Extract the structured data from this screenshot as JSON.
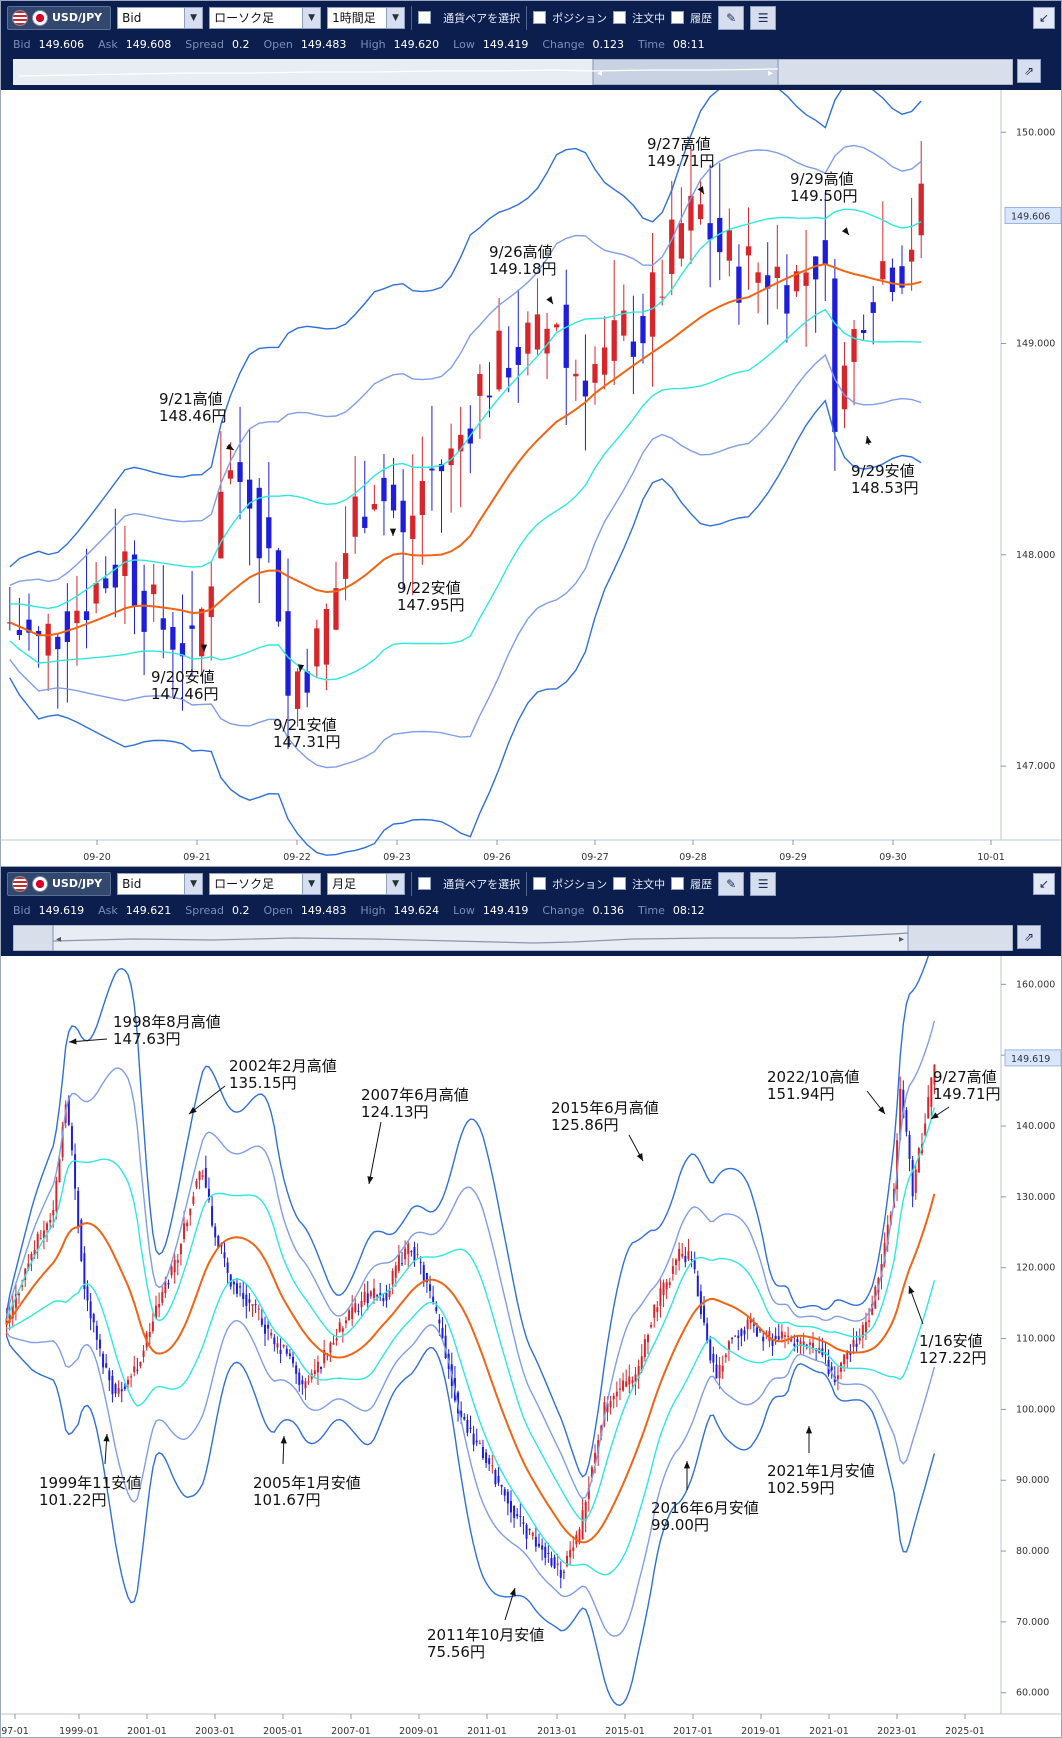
{
  "colors": {
    "toolbar_bg": "#0c1e4d",
    "bull": "#d6252b",
    "bear": "#1d1ddb",
    "sma": "#f06414",
    "band1": "#2ee8e0",
    "band2": "#7f9de8",
    "band3": "#2e6fdc",
    "price_tag_bg": "#d8e6ff"
  },
  "panels": [
    {
      "pair": "USD/JPY",
      "flags": [
        "us-flag-icon",
        "jp-flag-icon"
      ],
      "price_type": "Bid",
      "chart_kind": "ローソク足",
      "timeframe": "1時間足",
      "select_pair_label": "通貨ペアを選択",
      "checks": [
        "ポジション",
        "注文中",
        "履歴"
      ],
      "quote": {
        "bid_label": "Bid",
        "bid": "149.606",
        "ask_label": "Ask",
        "ask": "149.608",
        "spread_label": "Spread",
        "spread": "0.2",
        "open_label": "Open",
        "open": "149.483",
        "high_label": "High",
        "high": "149.620",
        "low_label": "Low",
        "low": "149.419",
        "change_label": "Change",
        "change": "0.123",
        "time_label": "Time",
        "time": "08:11"
      },
      "chart_data": {
        "type": "candlestick",
        "ylim": [
          146.65,
          150.2
        ],
        "y_ticks": [
          "150.000",
          "149.000",
          "148.000",
          "147.000"
        ],
        "x_ticks": [
          "09-20",
          "09-21",
          "09-22",
          "09-23",
          "09-26",
          "09-27",
          "09-28",
          "09-29",
          "09-30",
          "10-01"
        ],
        "current_price": "149.606",
        "close_path": [
          [
            0,
            147.68
          ],
          [
            3,
            147.56
          ],
          [
            6,
            147.72
          ],
          [
            9,
            147.85
          ],
          [
            12,
            147.98
          ],
          [
            15,
            147.7
          ],
          [
            18,
            147.6
          ],
          [
            19,
            147.5
          ],
          [
            21,
            147.95
          ],
          [
            22,
            148.38
          ],
          [
            25,
            148.35
          ],
          [
            26,
            148.15
          ],
          [
            28,
            147.8
          ],
          [
            29,
            147.32
          ],
          [
            30,
            147.45
          ],
          [
            32,
            147.55
          ],
          [
            34,
            147.85
          ],
          [
            36,
            148.2
          ],
          [
            38,
            148.35
          ],
          [
            40,
            148.2
          ],
          [
            41,
            148.05
          ],
          [
            43,
            148.35
          ],
          [
            46,
            148.45
          ],
          [
            49,
            148.8
          ],
          [
            52,
            148.95
          ],
          [
            55,
            149.0
          ],
          [
            57,
            149.15
          ],
          [
            58,
            148.9
          ],
          [
            60,
            148.88
          ],
          [
            62,
            148.9
          ],
          [
            64,
            149.05
          ],
          [
            66,
            149.08
          ],
          [
            68,
            149.3
          ],
          [
            70,
            149.55
          ],
          [
            72,
            149.62
          ],
          [
            74,
            149.45
          ],
          [
            76,
            149.35
          ],
          [
            79,
            149.35
          ],
          [
            82,
            149.3
          ],
          [
            84,
            149.42
          ],
          [
            85,
            149.25
          ],
          [
            86,
            148.75
          ],
          [
            87,
            148.85
          ],
          [
            89,
            149.22
          ],
          [
            91,
            149.38
          ],
          [
            93,
            149.4
          ],
          [
            95,
            149.62
          ]
        ],
        "annotations": [
          {
            "label": "9/20安値",
            "price": "147.46円"
          },
          {
            "label": "9/21高値",
            "price": "148.46円"
          },
          {
            "label": "9/21安値",
            "price": "147.31円"
          },
          {
            "label": "9/22安値",
            "price": "147.95円"
          },
          {
            "label": "9/26高値",
            "price": "149.18円"
          },
          {
            "label": "9/27高値",
            "price": "149.71円"
          },
          {
            "label": "9/29高値",
            "price": "149.50円"
          },
          {
            "label": "9/29安値",
            "price": "148.53円"
          }
        ]
      }
    },
    {
      "pair": "USD/JPY",
      "flags": [
        "us-flag-icon",
        "jp-flag-icon"
      ],
      "price_type": "Bid",
      "chart_kind": "ローソク足",
      "timeframe": "月足",
      "select_pair_label": "通貨ペアを選択",
      "checks": [
        "ポジション",
        "注文中",
        "履歴"
      ],
      "quote": {
        "bid_label": "Bid",
        "bid": "149.619",
        "ask_label": "Ask",
        "ask": "149.621",
        "spread_label": "Spread",
        "spread": "0.2",
        "open_label": "Open",
        "open": "149.483",
        "high_label": "High",
        "high": "149.624",
        "low_label": "Low",
        "low": "149.419",
        "change_label": "Change",
        "change": "0.136",
        "time_label": "Time",
        "time": "08:12"
      },
      "chart_data": {
        "type": "candlestick",
        "ylim": [
          57,
          164
        ],
        "y_ticks": [
          "160.000",
          "150.000",
          "140.000",
          "130.000",
          "120.000",
          "110.000",
          "100.000",
          "90.000",
          "80.000",
          "70.000",
          "60.000"
        ],
        "x_ticks": [
          "97-01",
          "1999-01",
          "2001-01",
          "2003-01",
          "2005-01",
          "2007-01",
          "2009-01",
          "2011-01",
          "2013-01",
          "2015-01",
          "2017-01",
          "2019-01",
          "2021-01",
          "2023-01",
          "2025-01"
        ],
        "current_price": "149.619",
        "close_path": [
          [
            0,
            112
          ],
          [
            8,
            122
          ],
          [
            15,
            128
          ],
          [
            19,
            144
          ],
          [
            21,
            136
          ],
          [
            25,
            117
          ],
          [
            30,
            108
          ],
          [
            35,
            102
          ],
          [
            42,
            106
          ],
          [
            48,
            114
          ],
          [
            55,
            122
          ],
          [
            60,
            131
          ],
          [
            63,
            134
          ],
          [
            66,
            126
          ],
          [
            72,
            118
          ],
          [
            80,
            114
          ],
          [
            86,
            109
          ],
          [
            90,
            108
          ],
          [
            95,
            103
          ],
          [
            100,
            106
          ],
          [
            105,
            110
          ],
          [
            115,
            116
          ],
          [
            122,
            116
          ],
          [
            126,
            121
          ],
          [
            130,
            123
          ],
          [
            134,
            119
          ],
          [
            140,
            110
          ],
          [
            145,
            100
          ],
          [
            150,
            96
          ],
          [
            155,
            92
          ],
          [
            160,
            88
          ],
          [
            165,
            84
          ],
          [
            170,
            81
          ],
          [
            175,
            79
          ],
          [
            178,
            77
          ],
          [
            181,
            80
          ],
          [
            184,
            82
          ],
          [
            187,
            90
          ],
          [
            192,
            100
          ],
          [
            197,
            103
          ],
          [
            202,
            104
          ],
          [
            207,
            113
          ],
          [
            212,
            118
          ],
          [
            216,
            122
          ],
          [
            220,
            121
          ],
          [
            224,
            112
          ],
          [
            228,
            104
          ],
          [
            232,
            110
          ],
          [
            238,
            112
          ],
          [
            244,
            110
          ],
          [
            250,
            110
          ],
          [
            256,
            109
          ],
          [
            262,
            108
          ],
          [
            266,
            104
          ],
          [
            270,
            108
          ],
          [
            275,
            111
          ],
          [
            278,
            114
          ],
          [
            282,
            123
          ],
          [
            285,
            131
          ],
          [
            287,
            145
          ],
          [
            289,
            139
          ],
          [
            291,
            131
          ],
          [
            293,
            136
          ],
          [
            296,
            143
          ],
          [
            298,
            149
          ]
        ],
        "annotations": [
          {
            "label": "1998年8月高値",
            "price": "147.63円"
          },
          {
            "label": "1999年11安値",
            "price": "101.22円"
          },
          {
            "label": "2002年2月高値",
            "price": "135.15円"
          },
          {
            "label": "2005年1月安値",
            "price": "101.67円"
          },
          {
            "label": "2007年6月高値",
            "price": "124.13円"
          },
          {
            "label": "2011年10月安値",
            "price": "75.56円"
          },
          {
            "label": "2015年6月高値",
            "price": "125.86円"
          },
          {
            "label": "2016年6月安値",
            "price": "99.00円"
          },
          {
            "label": "2021年1月安値",
            "price": "102.59円"
          },
          {
            "label": "2022/10高値",
            "price": "151.94円"
          },
          {
            "label": "9/27高値",
            "price": "149.71円"
          },
          {
            "label": "1/16安値",
            "price": "127.22円"
          }
        ]
      }
    }
  ]
}
